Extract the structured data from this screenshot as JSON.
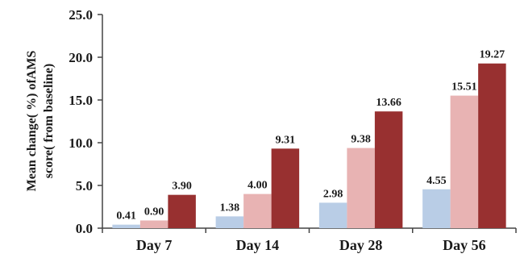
{
  "chart_data": {
    "type": "bar",
    "title": "",
    "xlabel": "",
    "ylabel_lines": [
      "Mean change( %)  ofAMS",
      "score( from baseline)"
    ],
    "categories": [
      "Day 7",
      "Day 14",
      "Day 28",
      "Day 56"
    ],
    "series": [
      {
        "color": "#b9cde6",
        "values": [
          0.41,
          1.38,
          2.98,
          4.55
        ],
        "labels": [
          "0.41",
          "1.38",
          "2.98",
          "4.55"
        ]
      },
      {
        "color": "#e8b3b3",
        "values": [
          0.9,
          4.0,
          9.38,
          15.51
        ],
        "labels": [
          "0.90",
          "4.00",
          "9.38",
          "15.51"
        ]
      },
      {
        "color": "#983030",
        "values": [
          3.9,
          9.31,
          13.66,
          19.27
        ],
        "labels": [
          "3.90",
          "9.31",
          "13.66",
          "19.27"
        ]
      }
    ],
    "ylim": [
      0,
      25
    ],
    "yticks": [
      0,
      5,
      10,
      15,
      20,
      25
    ],
    "ytick_labels": [
      "0.0",
      "5.0",
      "10.0",
      "15.0",
      "20.0",
      "25.0"
    ],
    "grid": false,
    "legend": "none"
  }
}
